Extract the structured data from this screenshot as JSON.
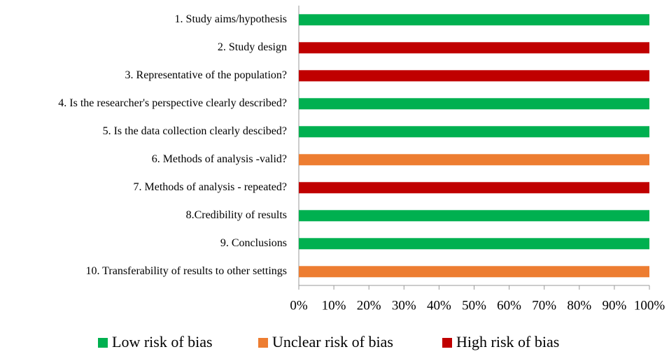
{
  "chart_data": {
    "type": "stacked_bar_horizontal",
    "categories": [
      "1. Study aims/hypothesis",
      "2. Study design",
      "3. Representative of the population?",
      "4. Is the researcher's perspective clearly described?",
      "5. Is the data collection clearly descibed?",
      "6. Methods of analysis -valid?",
      "7. Methods of analysis - repeated?",
      "8.Credibility of results",
      "9. Conclusions",
      "10. Transferability of results to other settings"
    ],
    "series": [
      {
        "name": "Low risk of bias",
        "color": "#00b050",
        "values": [
          100,
          0,
          0,
          100,
          100,
          0,
          0,
          100,
          100,
          0
        ]
      },
      {
        "name": "Unclear risk of bias",
        "color": "#ed7d31",
        "values": [
          0,
          0,
          0,
          0,
          0,
          100,
          0,
          0,
          0,
          100
        ]
      },
      {
        "name": "High risk of bias",
        "color": "#c00000",
        "values": [
          0,
          100,
          100,
          0,
          0,
          0,
          100,
          0,
          0,
          0
        ]
      }
    ],
    "xlim": [
      0,
      100
    ],
    "xticks": [
      {
        "value": 0,
        "label": "0%"
      },
      {
        "value": 10,
        "label": "10%"
      },
      {
        "value": 20,
        "label": "20%"
      },
      {
        "value": 30,
        "label": "30%"
      },
      {
        "value": 40,
        "label": "40%"
      },
      {
        "value": 50,
        "label": "50%"
      },
      {
        "value": 60,
        "label": "60%"
      },
      {
        "value": 70,
        "label": "70%"
      },
      {
        "value": 80,
        "label": "80%"
      },
      {
        "value": 90,
        "label": "90%"
      },
      {
        "value": 100,
        "label": "100%"
      }
    ],
    "legend": "bottom"
  }
}
